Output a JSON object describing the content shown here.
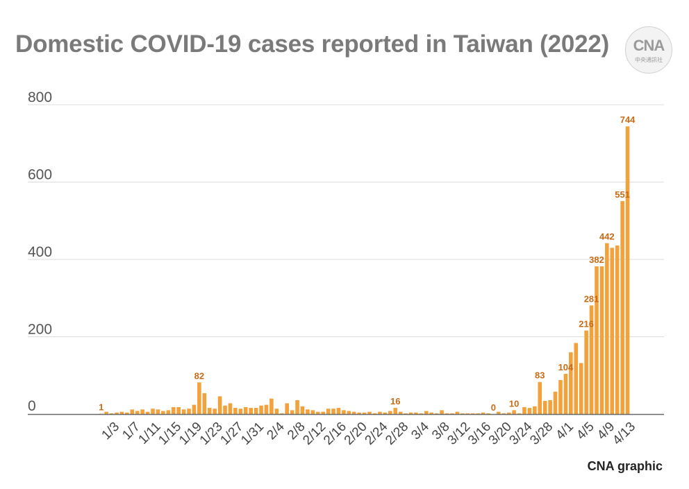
{
  "title": "Domestic COVID-19 cases reported in Taiwan (2022)",
  "logo": {
    "mark": "CNA",
    "sub": "中央通訊社"
  },
  "source": "CNA graphic",
  "colors": {
    "bar": "#f2a23c",
    "label": "#c96a14",
    "axis": "#666666",
    "grid": "#dcdcdc",
    "title": "#7a7a7a"
  },
  "chart_data": {
    "type": "bar",
    "ylim": [
      0,
      800
    ],
    "yticks": [
      0,
      200,
      400,
      600,
      800
    ],
    "grid": true,
    "xtick_labels": [
      "1/3",
      "1/7",
      "1/11",
      "1/15",
      "1/19",
      "1/23",
      "1/27",
      "1/31",
      "2/4",
      "2/8",
      "2/12",
      "2/16",
      "2/20",
      "2/24",
      "2/28",
      "3/4",
      "3/8",
      "3/12",
      "3/16",
      "3/20",
      "3/24",
      "3/28",
      "4/1",
      "4/5",
      "4/9",
      "4/13"
    ],
    "categories": [
      "1/1",
      "1/2",
      "1/3",
      "1/4",
      "1/5",
      "1/6",
      "1/7",
      "1/8",
      "1/9",
      "1/10",
      "1/11",
      "1/12",
      "1/13",
      "1/14",
      "1/15",
      "1/16",
      "1/17",
      "1/18",
      "1/19",
      "1/20",
      "1/21",
      "1/22",
      "1/23",
      "1/24",
      "1/25",
      "1/26",
      "1/27",
      "1/28",
      "1/29",
      "1/30",
      "1/31",
      "2/1",
      "2/2",
      "2/3",
      "2/4",
      "2/5",
      "2/6",
      "2/7",
      "2/8",
      "2/9",
      "2/10",
      "2/11",
      "2/12",
      "2/13",
      "2/14",
      "2/15",
      "2/16",
      "2/17",
      "2/18",
      "2/19",
      "2/20",
      "2/21",
      "2/22",
      "2/23",
      "2/24",
      "2/25",
      "2/26",
      "2/27",
      "2/28",
      "3/1",
      "3/2",
      "3/3",
      "3/4",
      "3/5",
      "3/6",
      "3/7",
      "3/8",
      "3/9",
      "3/10",
      "3/11",
      "3/12",
      "3/13",
      "3/14",
      "3/15",
      "3/16",
      "3/17",
      "3/18",
      "3/19",
      "3/20",
      "3/21",
      "3/22",
      "3/23",
      "3/24",
      "3/25",
      "3/26",
      "3/27",
      "3/28",
      "3/29",
      "3/30",
      "3/31",
      "4/1",
      "4/2",
      "4/3",
      "4/4",
      "4/5",
      "4/6",
      "4/7",
      "4/8",
      "4/9",
      "4/10",
      "4/11",
      "4/12",
      "4/13"
    ],
    "values": [
      1,
      6,
      2,
      4,
      6,
      4,
      12,
      8,
      12,
      6,
      14,
      12,
      8,
      10,
      18,
      18,
      12,
      14,
      24,
      82,
      54,
      16,
      14,
      46,
      22,
      28,
      16,
      14,
      18,
      16,
      16,
      22,
      24,
      40,
      14,
      2,
      28,
      10,
      36,
      20,
      12,
      10,
      6,
      6,
      14,
      14,
      16,
      10,
      8,
      6,
      4,
      4,
      6,
      2,
      6,
      4,
      8,
      16,
      6,
      2,
      4,
      4,
      2,
      8,
      4,
      2,
      10,
      2,
      2,
      6,
      2,
      2,
      2,
      2,
      4,
      2,
      0,
      6,
      2,
      4,
      10,
      2,
      18,
      16,
      20,
      83,
      34,
      36,
      58,
      88,
      104,
      160,
      184,
      132,
      216,
      281,
      382,
      382,
      442,
      430,
      436,
      551,
      744
    ],
    "data_labels": [
      {
        "index": 0,
        "text": "1"
      },
      {
        "index": 19,
        "text": "82"
      },
      {
        "index": 57,
        "text": "16"
      },
      {
        "index": 76,
        "text": "0"
      },
      {
        "index": 80,
        "text": "10"
      },
      {
        "index": 85,
        "text": "83"
      },
      {
        "index": 90,
        "text": "104"
      },
      {
        "index": 94,
        "text": "216"
      },
      {
        "index": 95,
        "text": "281"
      },
      {
        "index": 96,
        "text": "382"
      },
      {
        "index": 98,
        "text": "442"
      },
      {
        "index": 101,
        "text": "551"
      },
      {
        "index": 102,
        "text": "744"
      }
    ]
  }
}
